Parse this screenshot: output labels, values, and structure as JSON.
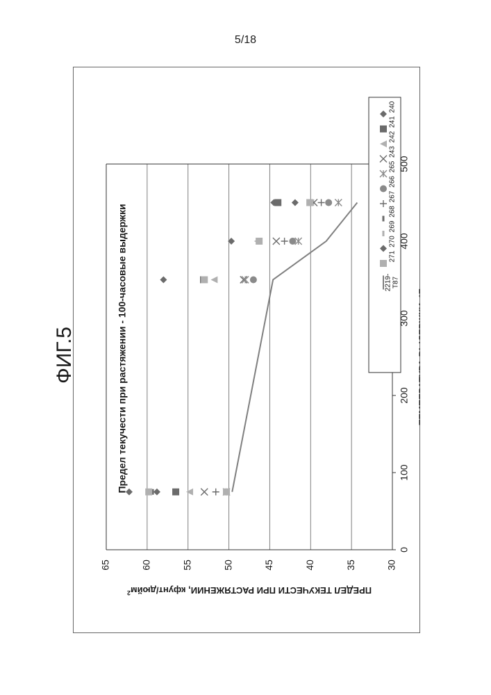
{
  "page": {
    "page_number": "5/18",
    "figure_label": "ФИГ.5"
  },
  "colors": {
    "marker_dark": "#6b6b6b",
    "marker_mid": "#8a8a8a",
    "marker_light": "#b0b0b0",
    "line": "#7f7f7f",
    "grid": "#7f7f7f"
  },
  "chart_data": {
    "type": "scatter",
    "orientation": "rotated 90° counter-clockwise",
    "title": "Предел текучести при растяжении - 100-часовые выдержки",
    "xlabel": "ТЕМПЕРАТУРА ВЫДЕРЖКИ, °F",
    "ylabel": "ПРЕДЕЛ ТЕКУЧЕСТИ ПРИ РАСТЯЖЕНИИ, кфунт/дюйм",
    "ylabel_superscript": "2",
    "xlim": [
      0,
      500
    ],
    "ylim": [
      30,
      65
    ],
    "x_ticks": [
      "0",
      "100",
      "200",
      "300",
      "400",
      "500"
    ],
    "y_ticks": [
      "30",
      "35",
      "40",
      "45",
      "50",
      "55",
      "60",
      "65"
    ],
    "grid": "horizontal at y ticks",
    "legend_position": "right",
    "series": [
      {
        "name": "240",
        "marker": "diamond",
        "color": "#6b6b6b",
        "points": [
          [
            75,
            62.2
          ],
          [
            350,
            58
          ],
          [
            400,
            49.7
          ],
          [
            450,
            44.5
          ]
        ]
      },
      {
        "name": "241",
        "marker": "square",
        "color": "#6b6b6b",
        "points": [
          [
            75,
            56.5
          ],
          [
            350,
            53.1
          ],
          [
            450,
            44
          ]
        ]
      },
      {
        "name": "242",
        "marker": "triangle",
        "color": "#b0b0b0",
        "points": [
          [
            75,
            54.8
          ],
          [
            350,
            51.8
          ],
          [
            400,
            46.5
          ],
          [
            450,
            40
          ]
        ]
      },
      {
        "name": "243",
        "marker": "x",
        "color": "#6b6b6b",
        "points": [
          [
            75,
            53
          ],
          [
            350,
            48.2
          ],
          [
            400,
            44.2
          ],
          [
            450,
            39.6
          ]
        ]
      },
      {
        "name": "265",
        "marker": "asterisk",
        "color": "#8a8a8a",
        "points": [
          [
            75,
            50.3
          ],
          [
            350,
            48
          ],
          [
            400,
            41.5
          ],
          [
            450,
            36.6
          ]
        ]
      },
      {
        "name": "266",
        "marker": "circle",
        "color": "#8a8a8a",
        "points": [
          [
            350,
            47
          ],
          [
            400,
            42.2
          ],
          [
            450,
            37.8
          ]
        ]
      },
      {
        "name": "267",
        "marker": "plus",
        "color": "#6b6b6b",
        "points": [
          [
            75,
            51.6
          ],
          [
            400,
            43.2
          ],
          [
            450,
            38.7
          ]
        ]
      },
      {
        "name": "268",
        "marker": "dash",
        "color": "#6b6b6b",
        "points": [
          [
            75,
            59.3
          ],
          [
            350,
            53.3
          ],
          [
            400,
            46.5
          ],
          [
            450,
            40
          ]
        ]
      },
      {
        "name": "269",
        "marker": "dash",
        "color": "#b0b0b0",
        "points": [
          [
            75,
            59.6
          ],
          [
            350,
            53
          ],
          [
            400,
            46.3
          ],
          [
            450,
            40.1
          ]
        ]
      },
      {
        "name": "270",
        "marker": "diamond",
        "color": "#6b6b6b",
        "points": [
          [
            75,
            58.8
          ],
          [
            450,
            41.9
          ]
        ]
      },
      {
        "name": "271",
        "marker": "square",
        "color": "#b0b0b0",
        "points": [
          [
            75,
            59.8
          ],
          [
            75,
            50.3
          ],
          [
            350,
            53
          ],
          [
            400,
            46.3
          ],
          [
            450,
            40.1
          ]
        ]
      }
    ],
    "line_series": {
      "name": "2219-T87",
      "points": [
        [
          75,
          49.6
        ],
        [
          350,
          44.6
        ],
        [
          400,
          38.1
        ],
        [
          450,
          34.3
        ]
      ]
    }
  }
}
